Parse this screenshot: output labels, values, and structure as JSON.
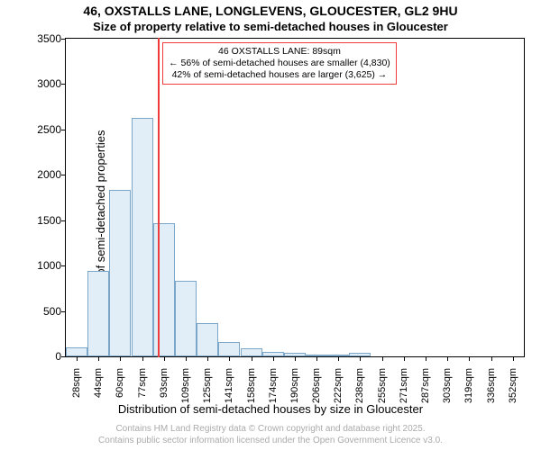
{
  "title": "46, OXSTALLS LANE, LONGLEVENS, GLOUCESTER, GL2 9HU",
  "subtitle": "Size of property relative to semi-detached houses in Gloucester",
  "ylabel": "Number of semi-detached properties",
  "xlabel": "Distribution of semi-detached houses by size in Gloucester",
  "credits_line1": "Contains HM Land Registry data © Crown copyright and database right 2025.",
  "credits_line2": "Contains public sector information licensed under the Open Government Licence v3.0.",
  "chart": {
    "type": "histogram",
    "background_color": "#ffffff",
    "axis_color": "#000000",
    "bar_fill": "#e1edf7",
    "bar_stroke": "#7ba6c8",
    "ref_line_color": "#ee3b3b",
    "anno_border_color": "#ee3b3b",
    "ylim": [
      0,
      3500
    ],
    "ytick_step": 500,
    "xlim_sqm": [
      20,
      360
    ],
    "x_tick_labels": [
      "28sqm",
      "44sqm",
      "60sqm",
      "77sqm",
      "93sqm",
      "109sqm",
      "125sqm",
      "141sqm",
      "158sqm",
      "174sqm",
      "190sqm",
      "206sqm",
      "222sqm",
      "238sqm",
      "255sqm",
      "271sqm",
      "287sqm",
      "303sqm",
      "319sqm",
      "336sqm",
      "352sqm"
    ],
    "bars": [
      {
        "x_sqm": 28,
        "value": 100
      },
      {
        "x_sqm": 44,
        "value": 940
      },
      {
        "x_sqm": 60,
        "value": 1830
      },
      {
        "x_sqm": 77,
        "value": 2630
      },
      {
        "x_sqm": 93,
        "value": 1470
      },
      {
        "x_sqm": 109,
        "value": 830
      },
      {
        "x_sqm": 125,
        "value": 370
      },
      {
        "x_sqm": 141,
        "value": 160
      },
      {
        "x_sqm": 158,
        "value": 90
      },
      {
        "x_sqm": 174,
        "value": 45
      },
      {
        "x_sqm": 190,
        "value": 40
      },
      {
        "x_sqm": 206,
        "value": 20
      },
      {
        "x_sqm": 222,
        "value": 15
      },
      {
        "x_sqm": 238,
        "value": 35
      },
      {
        "x_sqm": 255,
        "value": 8
      },
      {
        "x_sqm": 271,
        "value": 8
      },
      {
        "x_sqm": 287,
        "value": 0
      },
      {
        "x_sqm": 303,
        "value": 0
      },
      {
        "x_sqm": 319,
        "value": 0
      },
      {
        "x_sqm": 336,
        "value": 0
      },
      {
        "x_sqm": 352,
        "value": 0
      }
    ],
    "reference_sqm": 89,
    "annotation": {
      "line1": "46 OXSTALLS LANE: 89sqm",
      "line2": "← 56% of semi-detached houses are smaller (4,830)",
      "line3": "42% of semi-detached houses are larger (3,625) →"
    },
    "label_fontsize": 13,
    "title_fontsize": 14,
    "tick_fontsize": 12
  }
}
